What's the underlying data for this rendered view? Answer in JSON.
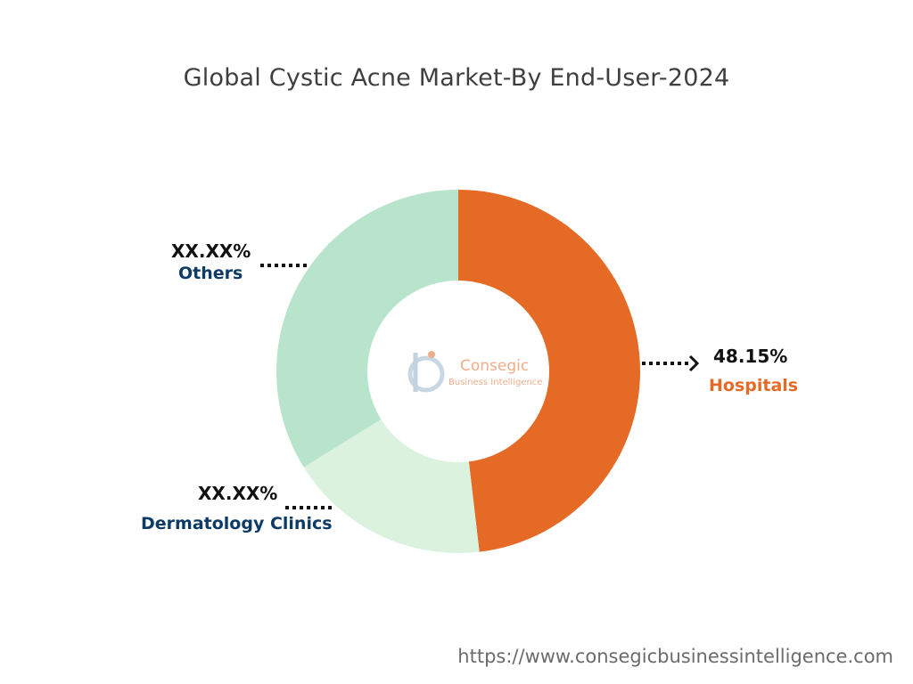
{
  "chart_data": {
    "type": "pie",
    "title": "Global Cystic Acne Market-By End-User-2024",
    "slices": [
      {
        "name": "Hospitals",
        "value": 48.15,
        "label": "48.15%",
        "color": "#e56a26",
        "label_color": "#e56a26"
      },
      {
        "name": "Dermatology Clinics",
        "value": 18.0,
        "label": "XX.XX%",
        "color": "#dbf2df",
        "label_color": "#0d3b66"
      },
      {
        "name": "Others",
        "value": 33.85,
        "label": "XX.XX%",
        "color": "#b7e4ca",
        "label_color": "#0d3b66"
      }
    ]
  },
  "watermark": {
    "line1": "Consegic",
    "line2": "Business Intelligence"
  },
  "footer": {
    "url": "https://www.consegicbusinessintelligence.com"
  }
}
